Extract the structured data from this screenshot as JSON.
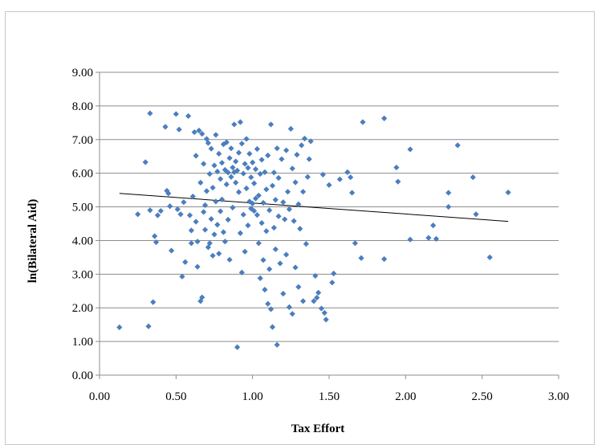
{
  "chart_data": {
    "type": "scatter",
    "xlabel": "Tax Effort",
    "ylabel": "ln(Bilateral Aid)",
    "xlim": [
      0,
      3
    ],
    "ylim": [
      0,
      9
    ],
    "x_ticks": [
      "0.00",
      "0.50",
      "1.00",
      "1.50",
      "2.00",
      "2.50",
      "3.00"
    ],
    "y_ticks": [
      "0.00",
      "1.00",
      "2.00",
      "3.00",
      "4.00",
      "5.00",
      "6.00",
      "7.00",
      "8.00",
      "9.00"
    ],
    "grid": "horizontal",
    "legend": "none",
    "marker_color": "#4a7ebf",
    "trendline_color": "#000000",
    "trendline": {
      "x": [
        0.13,
        2.67
      ],
      "y": [
        5.4,
        4.57
      ]
    },
    "points": [
      [
        0.13,
        1.42
      ],
      [
        0.25,
        4.78
      ],
      [
        0.3,
        6.33
      ],
      [
        0.32,
        1.45
      ],
      [
        0.33,
        7.78
      ],
      [
        0.33,
        4.9
      ],
      [
        0.35,
        2.17
      ],
      [
        0.36,
        4.13
      ],
      [
        0.37,
        3.95
      ],
      [
        0.38,
        4.75
      ],
      [
        0.4,
        4.88
      ],
      [
        0.43,
        7.38
      ],
      [
        0.44,
        5.48
      ],
      [
        0.45,
        5.4
      ],
      [
        0.46,
        5.02
      ],
      [
        0.47,
        3.7
      ],
      [
        0.5,
        7.76
      ],
      [
        0.51,
        4.93
      ],
      [
        0.52,
        7.3
      ],
      [
        0.53,
        4.78
      ],
      [
        0.54,
        2.93
      ],
      [
        0.55,
        5.14
      ],
      [
        0.56,
        3.36
      ],
      [
        0.58,
        7.7
      ],
      [
        0.59,
        4.75
      ],
      [
        0.6,
        4.3
      ],
      [
        0.6,
        3.92
      ],
      [
        0.61,
        5.31
      ],
      [
        0.62,
        7.22
      ],
      [
        0.63,
        4.56
      ],
      [
        0.63,
        6.52
      ],
      [
        0.64,
        3.97
      ],
      [
        0.64,
        3.22
      ],
      [
        0.65,
        7.27
      ],
      [
        0.66,
        2.2
      ],
      [
        0.66,
        5.72
      ],
      [
        0.67,
        7.17
      ],
      [
        0.67,
        2.31
      ],
      [
        0.68,
        4.85
      ],
      [
        0.68,
        6.28
      ],
      [
        0.69,
        5.05
      ],
      [
        0.69,
        4.32
      ],
      [
        0.7,
        7.02
      ],
      [
        0.7,
        5.47
      ],
      [
        0.71,
        6.9
      ],
      [
        0.71,
        3.8
      ],
      [
        0.72,
        5.98
      ],
      [
        0.72,
        3.92
      ],
      [
        0.73,
        6.73
      ],
      [
        0.73,
        4.64
      ],
      [
        0.74,
        5.57
      ],
      [
        0.74,
        3.55
      ],
      [
        0.75,
        6.23
      ],
      [
        0.75,
        4.18
      ],
      [
        0.76,
        7.14
      ],
      [
        0.76,
        5.16
      ],
      [
        0.77,
        6.05
      ],
      [
        0.77,
        4.47
      ],
      [
        0.78,
        6.58
      ],
      [
        0.78,
        3.61
      ],
      [
        0.79,
        5.83
      ],
      [
        0.79,
        4.87
      ],
      [
        0.8,
        6.31
      ],
      [
        0.8,
        5.22
      ],
      [
        0.81,
        6.86
      ],
      [
        0.81,
        4.25
      ],
      [
        0.82,
        6.1
      ],
      [
        0.82,
        3.97
      ],
      [
        0.83,
        5.67
      ],
      [
        0.83,
        6.92
      ],
      [
        0.84,
        6.02
      ],
      [
        0.84,
        4.62
      ],
      [
        0.85,
        6.45
      ],
      [
        0.85,
        3.43
      ],
      [
        0.86,
        5.89
      ],
      [
        0.86,
        6.74
      ],
      [
        0.87,
        6.17
      ],
      [
        0.87,
        4.98
      ],
      [
        0.88,
        7.45
      ],
      [
        0.88,
        6.03
      ],
      [
        0.89,
        5.72
      ],
      [
        0.89,
        6.35
      ],
      [
        0.9,
        6.08
      ],
      [
        0.9,
        0.83
      ],
      [
        0.91,
        5.44
      ],
      [
        0.91,
        6.61
      ],
      [
        0.92,
        7.52
      ],
      [
        0.92,
        4.22
      ],
      [
        0.93,
        3.05
      ],
      [
        0.93,
        6.88
      ],
      [
        0.94,
        5.99
      ],
      [
        0.94,
        4.77
      ],
      [
        0.95,
        6.28
      ],
      [
        0.95,
        3.67
      ],
      [
        0.96,
        5.55
      ],
      [
        0.96,
        7.02
      ],
      [
        0.97,
        6.16
      ],
      [
        0.97,
        4.45
      ],
      [
        0.98,
        5.16
      ],
      [
        0.98,
        6.58
      ],
      [
        0.99,
        4.95
      ],
      [
        0.99,
        5.88
      ],
      [
        1.0,
        5.1
      ],
      [
        1.0,
        6.32
      ],
      [
        1.01,
        4.88
      ],
      [
        1.01,
        5.7
      ],
      [
        1.02,
        5.25
      ],
      [
        1.02,
        6.12
      ],
      [
        1.03,
        4.76
      ],
      [
        1.03,
        6.72
      ],
      [
        1.04,
        5.34
      ],
      [
        1.04,
        3.92
      ],
      [
        1.05,
        5.98
      ],
      [
        1.05,
        2.88
      ],
      [
        1.06,
        4.52
      ],
      [
        1.06,
        6.4
      ],
      [
        1.07,
        5.12
      ],
      [
        1.07,
        3.42
      ],
      [
        1.08,
        6.03
      ],
      [
        1.08,
        2.54
      ],
      [
        1.09,
        4.28
      ],
      [
        1.09,
        5.52
      ],
      [
        1.1,
        2.12
      ],
      [
        1.1,
        6.53
      ],
      [
        1.11,
        3.15
      ],
      [
        1.11,
        4.9
      ],
      [
        1.12,
        7.45
      ],
      [
        1.12,
        1.96
      ],
      [
        1.13,
        5.63
      ],
      [
        1.13,
        1.43
      ],
      [
        1.14,
        4.38
      ],
      [
        1.14,
        6.02
      ],
      [
        1.15,
        3.74
      ],
      [
        1.15,
        5.21
      ],
      [
        1.16,
        6.74
      ],
      [
        1.16,
        0.9
      ],
      [
        1.17,
        4.72
      ],
      [
        1.17,
        5.86
      ],
      [
        1.18,
        3.32
      ],
      [
        1.19,
        6.42
      ],
      [
        1.2,
        5.14
      ],
      [
        1.2,
        2.42
      ],
      [
        1.21,
        4.63
      ],
      [
        1.22,
        6.68
      ],
      [
        1.22,
        3.58
      ],
      [
        1.23,
        5.45
      ],
      [
        1.24,
        2.02
      ],
      [
        1.24,
        4.93
      ],
      [
        1.25,
        7.32
      ],
      [
        1.26,
        6.14
      ],
      [
        1.26,
        1.82
      ],
      [
        1.27,
        4.58
      ],
      [
        1.28,
        5.73
      ],
      [
        1.28,
        3.2
      ],
      [
        1.29,
        6.55
      ],
      [
        1.3,
        2.62
      ],
      [
        1.3,
        5.08
      ],
      [
        1.31,
        4.35
      ],
      [
        1.32,
        6.83
      ],
      [
        1.33,
        5.45
      ],
      [
        1.33,
        2.2
      ],
      [
        1.34,
        7.03
      ],
      [
        1.35,
        3.9
      ],
      [
        1.36,
        5.89
      ],
      [
        1.37,
        6.42
      ],
      [
        1.38,
        6.95
      ],
      [
        1.4,
        2.2
      ],
      [
        1.41,
        2.95
      ],
      [
        1.42,
        2.3
      ],
      [
        1.43,
        2.45
      ],
      [
        1.45,
        1.98
      ],
      [
        1.46,
        5.96
      ],
      [
        1.47,
        1.85
      ],
      [
        1.48,
        1.65
      ],
      [
        1.5,
        5.65
      ],
      [
        1.52,
        2.75
      ],
      [
        1.53,
        3.02
      ],
      [
        1.57,
        5.82
      ],
      [
        1.62,
        6.03
      ],
      [
        1.64,
        5.88
      ],
      [
        1.65,
        5.42
      ],
      [
        1.67,
        3.92
      ],
      [
        1.71,
        3.48
      ],
      [
        1.72,
        7.52
      ],
      [
        1.86,
        7.63
      ],
      [
        1.86,
        3.45
      ],
      [
        1.94,
        6.17
      ],
      [
        1.95,
        5.75
      ],
      [
        2.03,
        6.71
      ],
      [
        2.03,
        4.03
      ],
      [
        2.15,
        4.08
      ],
      [
        2.18,
        4.45
      ],
      [
        2.2,
        4.05
      ],
      [
        2.28,
        5.42
      ],
      [
        2.28,
        5.0
      ],
      [
        2.34,
        6.83
      ],
      [
        2.44,
        5.88
      ],
      [
        2.46,
        4.78
      ],
      [
        2.55,
        3.5
      ],
      [
        2.67,
        5.43
      ]
    ]
  }
}
